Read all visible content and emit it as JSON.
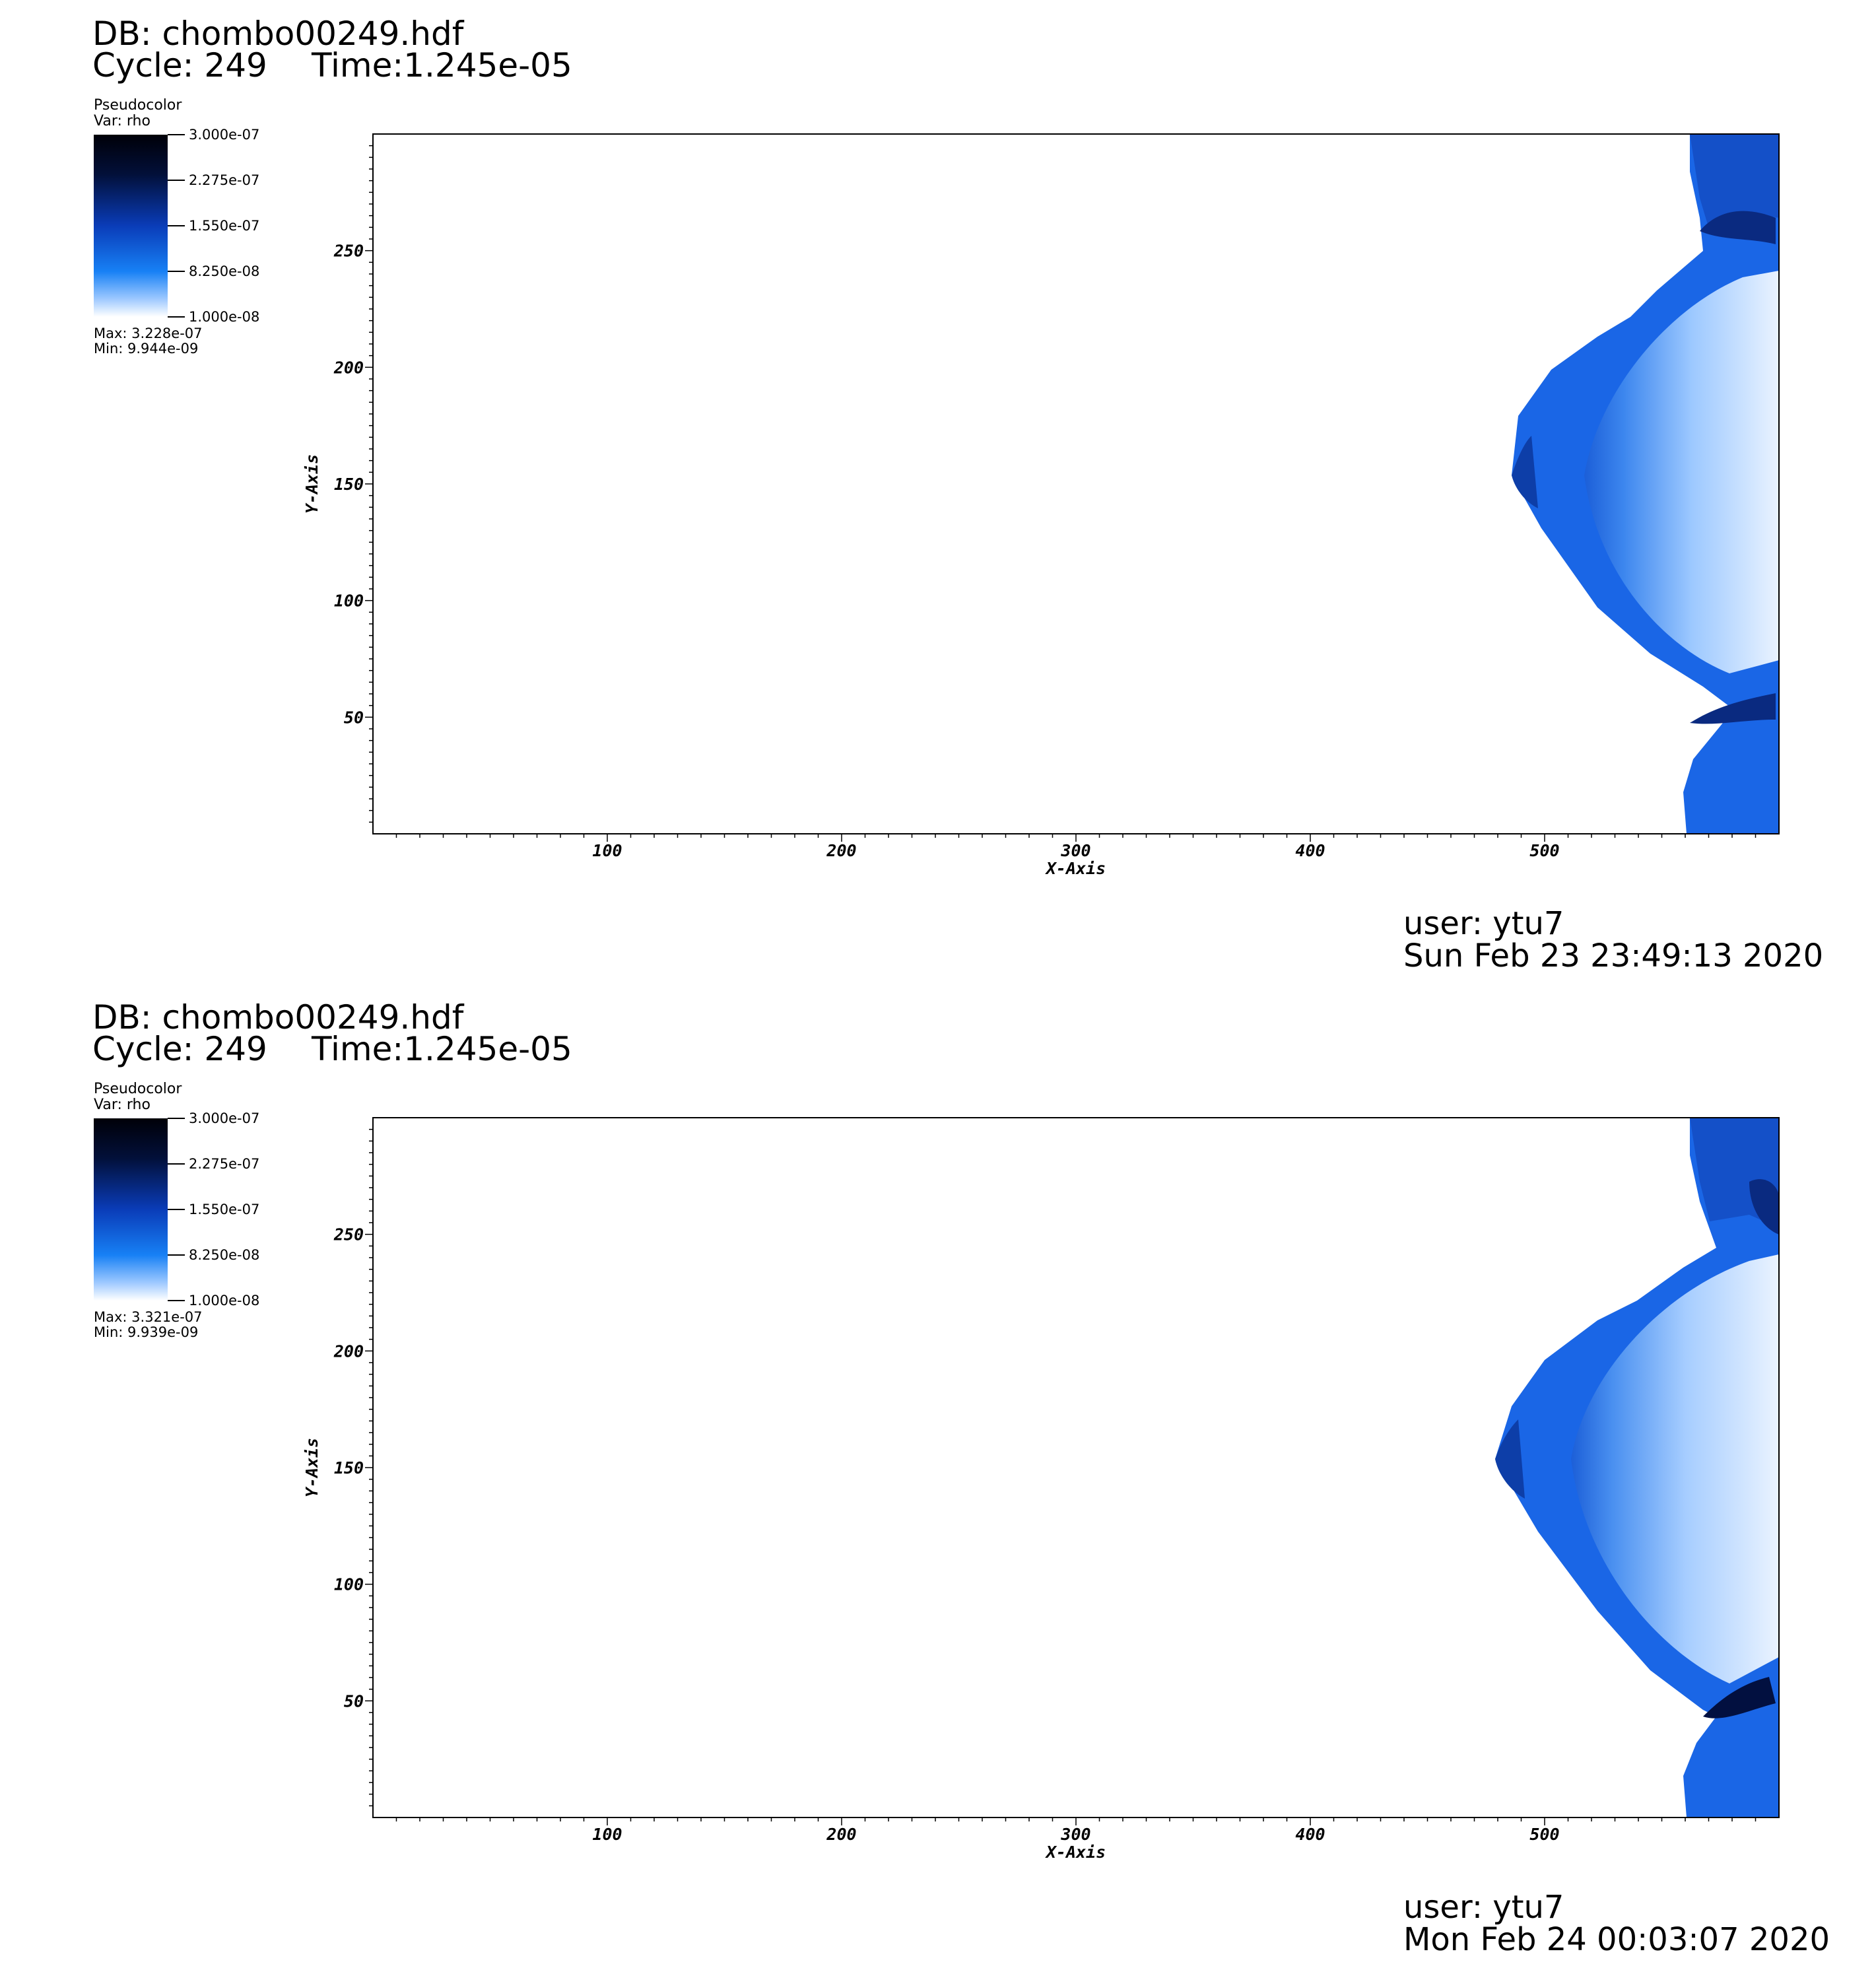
{
  "colors": {
    "colorbar_stops": [
      "#000008",
      "#02103a",
      "#0a3cb8",
      "#1780f5",
      "#9cc8ff",
      "#ffffff"
    ],
    "plot_background": "#ffffff",
    "axis": "#000000"
  },
  "chart_data": [
    {
      "type": "heatmap",
      "title": "DB: chombo00249.hdf",
      "cycle_label": "Cycle: 249",
      "time_label": "Time:1.245e-05",
      "plot_type": "Pseudocolor",
      "variable": "Var: rho",
      "colorbar_ticks": [
        "3.000e-07",
        "2.275e-07",
        "1.550e-07",
        "8.250e-08",
        "1.000e-08"
      ],
      "colorbar_range": [
        1e-08,
        3e-07
      ],
      "max_label": "Max:  3.228e-07",
      "min_label": "Min:  9.944e-09",
      "xlabel": "X-Axis",
      "ylabel": "Y-Axis",
      "xticks": [
        100,
        200,
        300,
        400,
        500
      ],
      "yticks": [
        50,
        100,
        150,
        200,
        250
      ],
      "xlim": [
        0,
        600
      ],
      "ylim": [
        0,
        300
      ],
      "field_description": "dense bow-shaped region near right edge; background near minimum density",
      "user": "user: ytu7",
      "date": "Sun Feb 23 23:49:13 2020"
    },
    {
      "type": "heatmap",
      "title": "DB: chombo00249.hdf",
      "cycle_label": "Cycle: 249",
      "time_label": "Time:1.245e-05",
      "plot_type": "Pseudocolor",
      "variable": "Var: rho",
      "colorbar_ticks": [
        "3.000e-07",
        "2.275e-07",
        "1.550e-07",
        "8.250e-08",
        "1.000e-08"
      ],
      "colorbar_range": [
        1e-08,
        3e-07
      ],
      "max_label": "Max:  3.321e-07",
      "min_label": "Min:  9.939e-09",
      "xlabel": "X-Axis",
      "ylabel": "Y-Axis",
      "xticks": [
        100,
        200,
        300,
        400,
        500
      ],
      "yticks": [
        50,
        100,
        150,
        200,
        250
      ],
      "xlim": [
        0,
        600
      ],
      "ylim": [
        0,
        300
      ],
      "field_description": "dense bow-shaped region near right edge; background near minimum density",
      "user": "user: ytu7",
      "date": "Mon Feb 24 00:03:07 2020"
    }
  ]
}
